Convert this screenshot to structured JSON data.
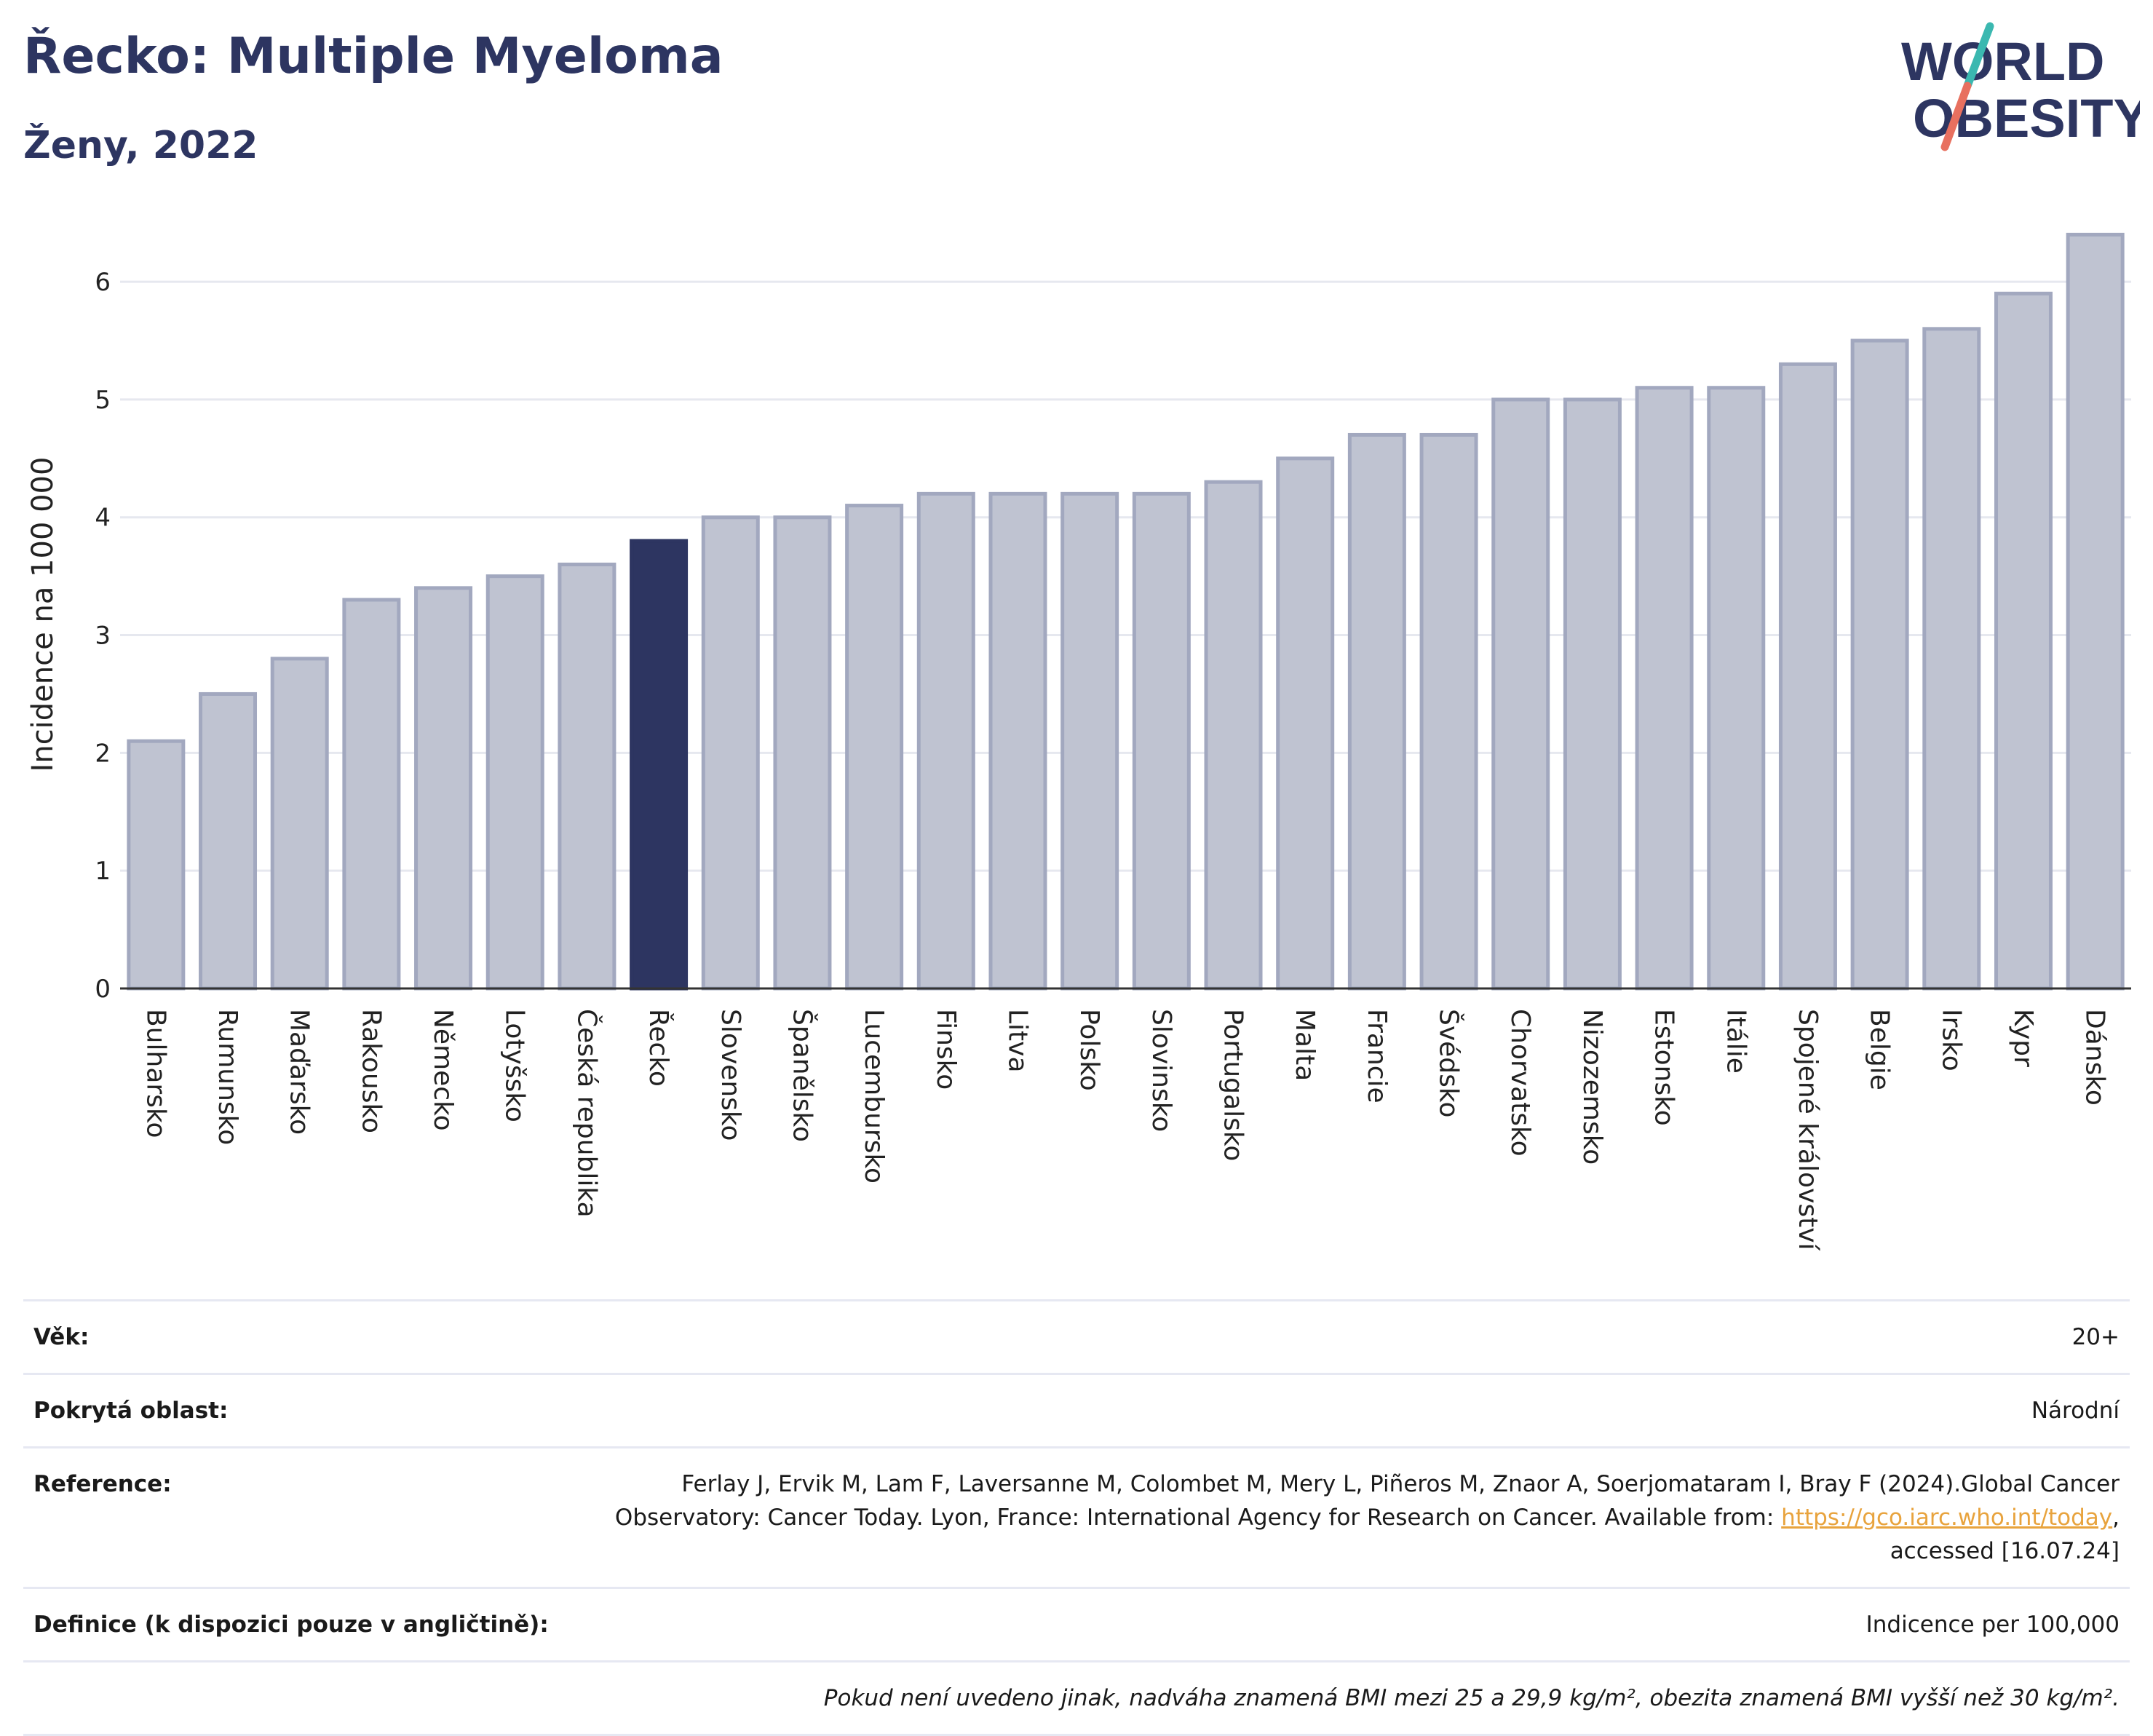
{
  "header": {
    "title": "Řecko: Multiple Myeloma",
    "subtitle": "Ženy, 2022"
  },
  "logo": {
    "line1": "WORLD",
    "line2": "OBESITY",
    "slash_colors": [
      "#3bb8b0",
      "#e8705f"
    ],
    "text_color": "#2d3561"
  },
  "chart_data": {
    "type": "bar",
    "title": "Řecko: Multiple Myeloma",
    "subtitle": "Ženy, 2022",
    "xlabel": "",
    "ylabel": "Incidence na 100 000",
    "ylim": [
      0,
      6.6
    ],
    "yticks": [
      0,
      1,
      2,
      3,
      4,
      5,
      6
    ],
    "grid": true,
    "highlight": "Řecko",
    "colors": {
      "bar": "#bfc3d1",
      "bar_edge": "#a2a8bf",
      "highlight": "#2d3561",
      "axis": "#333333",
      "grid": "#e6e8ef"
    },
    "categories": [
      "Bulharsko",
      "Rumunsko",
      "Maďarsko",
      "Rakousko",
      "Německo",
      "Lotyšsko",
      "Česká republika",
      "Řecko",
      "Slovensko",
      "Španělsko",
      "Lucembursko",
      "Finsko",
      "Litva",
      "Polsko",
      "Slovinsko",
      "Portugalsko",
      "Malta",
      "Francie",
      "Švédsko",
      "Chorvatsko",
      "Nizozemsko",
      "Estonsko",
      "Itálie",
      "Spojené království",
      "Belgie",
      "Irsko",
      "Kypr",
      "Dánsko"
    ],
    "values": [
      2.1,
      2.5,
      2.8,
      3.3,
      3.4,
      3.5,
      3.6,
      3.8,
      4.0,
      4.0,
      4.1,
      4.2,
      4.2,
      4.2,
      4.2,
      4.3,
      4.5,
      4.7,
      4.7,
      5.0,
      5.0,
      5.1,
      5.1,
      5.3,
      5.5,
      5.6,
      5.9,
      6.4
    ]
  },
  "meta": {
    "age_label": "Věk:",
    "age_value": "20+",
    "area_label": "Pokrytá oblast:",
    "area_value": "Národní",
    "ref_label": "Reference:",
    "ref_text_1": "Ferlay J, Ervik M, Lam F, Laversanne M, Colombet M, Mery L, Piñeros M, Znaor A, Soerjomataram I, Bray F (2024).Global Cancer Observatory: Cancer Today. Lyon, France: International Agency for Research on Cancer. Available from: ",
    "ref_link": "https://gco.iarc.who.int/today",
    "ref_text_2": ", accessed [16.07.24]",
    "def_label": "Definice (k dispozici pouze v angličtině):",
    "def_value": "Indicence per 100,000",
    "note": "Pokud není uvedeno jinak, nadváha znamená BMI mezi 25 a 29,9 kg/m², obezita znamená BMI vyšší než 30 kg/m²."
  }
}
